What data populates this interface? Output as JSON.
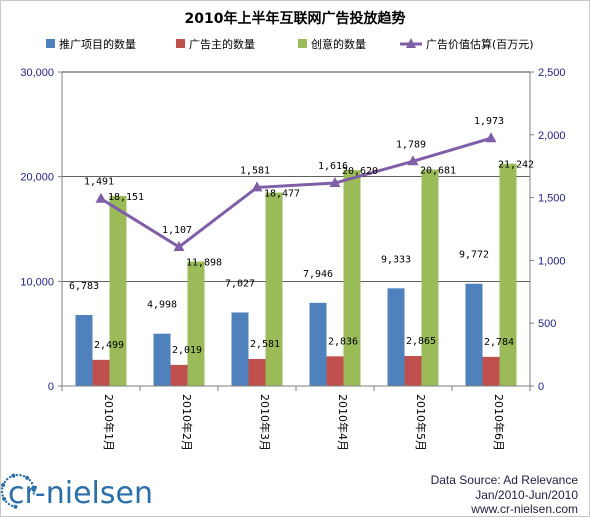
{
  "chart_data": {
    "type": "bar",
    "title": "2010年上半年互联网广告投放趋势",
    "categories": [
      "2010年1月",
      "2010年2月",
      "2010年3月",
      "2010年4月",
      "2010年5月",
      "2010年6月"
    ],
    "series": [
      {
        "name": "推广项目的数量",
        "kind": "bar",
        "axis": "left",
        "color": "#4f81bd",
        "values": [
          6783,
          4998,
          7027,
          7946,
          9333,
          9772
        ],
        "labels": [
          "6,783",
          "4,998",
          "7,027",
          "7,946",
          "9,333",
          "9,772"
        ]
      },
      {
        "name": "广告主的数量",
        "kind": "bar",
        "axis": "left",
        "color": "#c0504d",
        "values": [
          2499,
          2019,
          2581,
          2836,
          2865,
          2784
        ],
        "labels": [
          "2,499",
          "2,019",
          "2,581",
          "2,836",
          "2,865",
          "2,784"
        ]
      },
      {
        "name": "创意的数量",
        "kind": "bar",
        "axis": "left",
        "color": "#9bbb59",
        "values": [
          18151,
          11898,
          18477,
          20620,
          20681,
          21242
        ],
        "labels": [
          "18,151",
          "11,898",
          "18,477",
          "20,620",
          "20,681",
          "21,242"
        ]
      },
      {
        "name": "广告价值估算(百万元)",
        "kind": "line",
        "axis": "right",
        "color": "#7f5fa8",
        "values": [
          1491,
          1107,
          1581,
          1616,
          1789,
          1973
        ],
        "labels": [
          "1,491",
          "1,107",
          "1,581",
          "1,616",
          "1,789",
          "1,973"
        ]
      }
    ],
    "y_left": {
      "min": 0,
      "max": 30000,
      "ticks": [
        0,
        10000,
        20000,
        30000
      ],
      "tick_labels": [
        "0",
        "10,000",
        "20,000",
        "30,000"
      ]
    },
    "y_right": {
      "min": 0,
      "max": 2500,
      "ticks": [
        0,
        500,
        1000,
        1500,
        2000,
        2500
      ],
      "tick_labels": [
        "0",
        "500",
        "1,000",
        "1,500",
        "2,000",
        "2,500"
      ]
    },
    "grid": true,
    "legend_position": "top"
  },
  "logo": {
    "text": "cr-nielsen"
  },
  "source": {
    "line1": "Data Source: Ad Relevance",
    "line2": "Jan/2010-Jun/2010",
    "line3": "www.cr-nielsen.com"
  },
  "colors": {
    "axis_text": "#1f1f80",
    "grid": "#000000"
  }
}
